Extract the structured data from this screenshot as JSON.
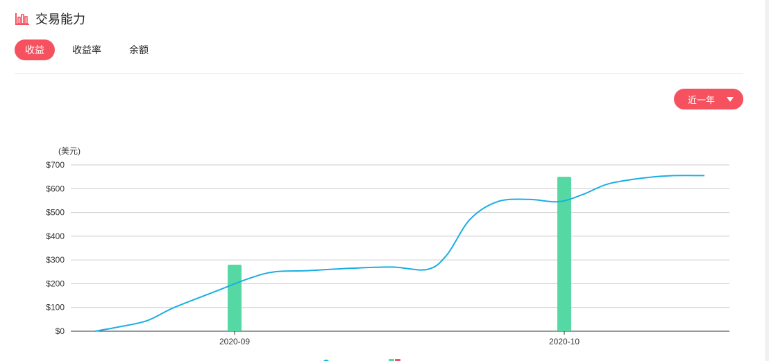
{
  "header": {
    "title": "交易能力",
    "icon": "bar-chart-icon"
  },
  "tabs": [
    {
      "label": "收益",
      "active": true
    },
    {
      "label": "收益率",
      "active": false
    },
    {
      "label": "余额",
      "active": false
    }
  ],
  "range_select": {
    "value": "近一年"
  },
  "chart_data": {
    "type": "bar+line",
    "unit_label": "(美元)",
    "y_ticks": [
      "$0",
      "$100",
      "$200",
      "$300",
      "$400",
      "$500",
      "$600",
      "$700"
    ],
    "ylim": [
      0,
      700
    ],
    "categories": [
      "2020-09",
      "2020-10"
    ],
    "bar_series": {
      "color": "#55d8a4",
      "values": [
        280,
        650
      ]
    },
    "line_series": {
      "color": "#1aaee3",
      "points": [
        [
          0.0,
          0
        ],
        [
          0.043,
          20
        ],
        [
          0.086,
          45
        ],
        [
          0.13,
          100
        ],
        [
          0.2,
          170
        ],
        [
          0.256,
          225
        ],
        [
          0.295,
          250
        ],
        [
          0.35,
          255
        ],
        [
          0.42,
          265
        ],
        [
          0.487,
          270
        ],
        [
          0.545,
          260
        ],
        [
          0.577,
          320
        ],
        [
          0.615,
          470
        ],
        [
          0.66,
          545
        ],
        [
          0.712,
          555
        ],
        [
          0.76,
          545
        ],
        [
          0.8,
          575
        ],
        [
          0.842,
          620
        ],
        [
          0.9,
          645
        ],
        [
          0.95,
          655
        ],
        [
          1.0,
          655
        ]
      ]
    },
    "grid": true
  }
}
